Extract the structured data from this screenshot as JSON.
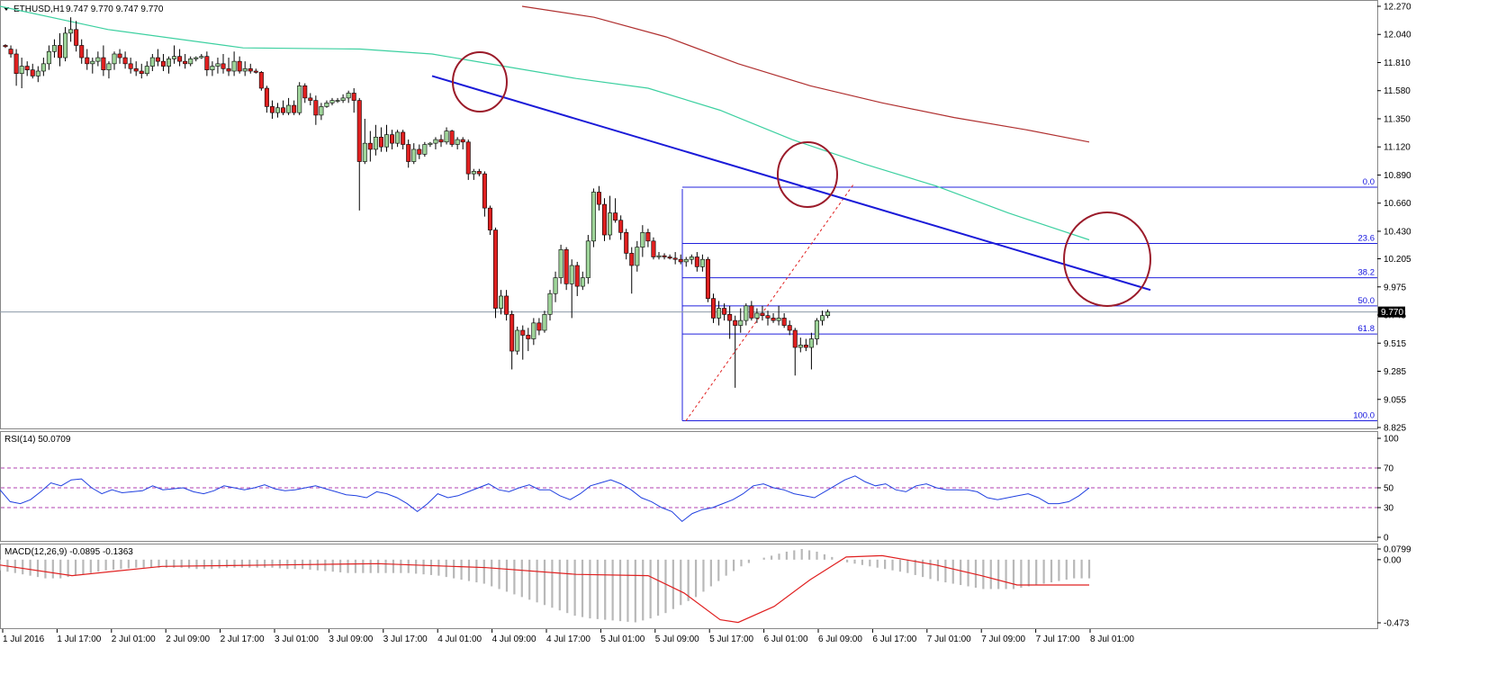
{
  "chart_data": {
    "type": "candlestick",
    "symbol": "ETHUSD,H1",
    "header_values": "9.747 9.770 9.747 9.770",
    "current_price": "9.770",
    "price_axis": {
      "min": 8.825,
      "max": 12.27,
      "ticks": [
        "12.270",
        "12.040",
        "11.810",
        "11.580",
        "11.350",
        "11.120",
        "10.890",
        "10.660",
        "10.430",
        "10.205",
        "9.975",
        "9.745",
        "9.515",
        "9.285",
        "9.055",
        "8.825"
      ]
    },
    "time_axis": {
      "ticks": [
        "1 Jul 2016",
        "1 Jul 17:00",
        "2 Jul 01:00",
        "2 Jul 09:00",
        "2 Jul 17:00",
        "3 Jul 01:00",
        "3 Jul 09:00",
        "3 Jul 17:00",
        "4 Jul 01:00",
        "4 Jul 09:00",
        "4 Jul 17:00",
        "5 Jul 01:00",
        "5 Jul 09:00",
        "5 Jul 17:00",
        "6 Jul 01:00",
        "6 Jul 09:00",
        "6 Jul 17:00",
        "7 Jul 01:00",
        "7 Jul 09:00",
        "7 Jul 17:00",
        "8 Jul 01:00"
      ]
    },
    "candles_ohlc": [
      [
        11.95,
        11.96,
        11.93,
        11.94
      ],
      [
        11.92,
        11.95,
        11.85,
        11.88
      ],
      [
        11.88,
        11.92,
        11.62,
        11.72
      ],
      [
        11.72,
        11.85,
        11.6,
        11.78
      ],
      [
        11.78,
        11.82,
        11.7,
        11.75
      ],
      [
        11.75,
        11.8,
        11.68,
        11.7
      ],
      [
        11.7,
        11.78,
        11.65,
        11.74
      ],
      [
        11.74,
        11.85,
        11.7,
        11.8
      ],
      [
        11.8,
        11.95,
        11.75,
        11.9
      ],
      [
        11.9,
        12.0,
        11.85,
        11.95
      ],
      [
        11.95,
        12.05,
        11.78,
        11.85
      ],
      [
        11.85,
        12.1,
        11.82,
        12.05
      ],
      [
        12.05,
        12.18,
        11.98,
        12.08
      ],
      [
        12.08,
        12.15,
        11.9,
        11.95
      ],
      [
        11.95,
        12.0,
        11.8,
        11.85
      ],
      [
        11.85,
        11.92,
        11.75,
        11.8
      ],
      [
        11.8,
        11.85,
        11.72,
        11.82
      ],
      [
        11.82,
        11.9,
        11.78,
        11.85
      ],
      [
        11.85,
        11.95,
        11.7,
        11.75
      ],
      [
        11.75,
        11.82,
        11.68,
        11.8
      ],
      [
        11.8,
        11.9,
        11.75,
        11.88
      ],
      [
        11.88,
        11.92,
        11.8,
        11.85
      ],
      [
        11.85,
        11.9,
        11.76,
        11.8
      ],
      [
        11.8,
        11.85,
        11.72,
        11.76
      ],
      [
        11.76,
        11.82,
        11.7,
        11.74
      ],
      [
        11.74,
        11.8,
        11.68,
        11.72
      ],
      [
        11.72,
        11.82,
        11.7,
        11.78
      ],
      [
        11.78,
        11.88,
        11.74,
        11.85
      ],
      [
        11.85,
        11.92,
        11.78,
        11.82
      ],
      [
        11.82,
        11.88,
        11.74,
        11.78
      ],
      [
        11.78,
        11.86,
        11.72,
        11.84
      ],
      [
        11.84,
        11.95,
        11.8,
        11.86
      ],
      [
        11.86,
        11.92,
        11.78,
        11.82
      ],
      [
        11.82,
        11.88,
        11.76,
        11.8
      ],
      [
        11.8,
        11.86,
        11.78,
        11.84
      ],
      [
        11.84,
        11.86,
        11.82,
        11.85
      ],
      [
        11.85,
        11.88,
        11.84,
        11.86
      ],
      [
        11.86,
        11.9,
        11.7,
        11.75
      ],
      [
        11.75,
        11.82,
        11.7,
        11.78
      ],
      [
        11.78,
        11.85,
        11.72,
        11.8
      ],
      [
        11.8,
        11.88,
        11.72,
        11.76
      ],
      [
        11.76,
        11.85,
        11.7,
        11.74
      ],
      [
        11.74,
        11.9,
        11.7,
        11.82
      ],
      [
        11.82,
        11.86,
        11.72,
        11.74
      ],
      [
        11.74,
        11.82,
        11.7,
        11.76
      ],
      [
        11.76,
        11.8,
        11.72,
        11.74
      ],
      [
        11.74,
        11.76,
        11.72,
        11.73
      ],
      [
        11.73,
        11.74,
        11.58,
        11.6
      ],
      [
        11.6,
        11.62,
        11.4,
        11.45
      ],
      [
        11.45,
        11.5,
        11.35,
        11.4
      ],
      [
        11.4,
        11.48,
        11.36,
        11.44
      ],
      [
        11.44,
        11.5,
        11.38,
        11.4
      ],
      [
        11.4,
        11.52,
        11.38,
        11.46
      ],
      [
        11.46,
        11.5,
        11.38,
        11.4
      ],
      [
        11.4,
        11.65,
        11.38,
        11.62
      ],
      [
        11.62,
        11.64,
        11.48,
        11.52
      ],
      [
        11.52,
        11.56,
        11.46,
        11.5
      ],
      [
        11.5,
        11.54,
        11.3,
        11.38
      ],
      [
        11.38,
        11.48,
        11.34,
        11.45
      ],
      [
        11.45,
        11.5,
        11.44,
        11.48
      ],
      [
        11.48,
        11.52,
        11.46,
        11.5
      ],
      [
        11.5,
        11.52,
        11.48,
        11.5
      ],
      [
        11.5,
        11.55,
        11.48,
        11.52
      ],
      [
        11.52,
        11.58,
        11.48,
        11.56
      ],
      [
        11.56,
        11.6,
        11.4,
        11.5
      ],
      [
        11.5,
        11.52,
        10.6,
        11.0
      ],
      [
        11.0,
        11.35,
        10.98,
        11.15
      ],
      [
        11.15,
        11.25,
        11.0,
        11.1
      ],
      [
        11.1,
        11.3,
        11.05,
        11.2
      ],
      [
        11.2,
        11.28,
        11.08,
        11.12
      ],
      [
        11.12,
        11.3,
        11.08,
        11.22
      ],
      [
        11.22,
        11.26,
        11.1,
        11.15
      ],
      [
        11.15,
        11.26,
        11.12,
        11.24
      ],
      [
        11.24,
        11.26,
        11.1,
        11.14
      ],
      [
        11.14,
        11.18,
        10.95,
        11.0
      ],
      [
        11.0,
        11.15,
        10.98,
        11.1
      ],
      [
        11.1,
        11.14,
        11.02,
        11.06
      ],
      [
        11.06,
        11.16,
        11.04,
        11.14
      ],
      [
        11.14,
        11.16,
        11.12,
        11.15
      ],
      [
        11.15,
        11.2,
        11.1,
        11.18
      ],
      [
        11.18,
        11.22,
        11.12,
        11.16
      ],
      [
        11.16,
        11.28,
        11.14,
        11.25
      ],
      [
        11.25,
        11.26,
        11.12,
        11.14
      ],
      [
        11.14,
        11.2,
        11.1,
        11.18
      ],
      [
        11.18,
        11.2,
        11.1,
        11.16
      ],
      [
        11.16,
        11.18,
        10.85,
        10.9
      ],
      [
        10.9,
        10.94,
        10.85,
        10.92
      ],
      [
        10.92,
        10.94,
        10.88,
        10.9
      ],
      [
        10.9,
        10.92,
        10.55,
        10.62
      ],
      [
        10.62,
        10.64,
        10.4,
        10.44
      ],
      [
        10.44,
        10.46,
        9.72,
        9.8
      ],
      [
        9.8,
        9.95,
        9.75,
        9.9
      ],
      [
        9.9,
        9.95,
        9.7,
        9.75
      ],
      [
        9.75,
        9.78,
        9.3,
        9.45
      ],
      [
        9.45,
        9.65,
        9.42,
        9.62
      ],
      [
        9.62,
        9.66,
        9.38,
        9.58
      ],
      [
        9.58,
        9.64,
        9.45,
        9.55
      ],
      [
        9.55,
        9.72,
        9.5,
        9.68
      ],
      [
        9.68,
        9.72,
        9.58,
        9.62
      ],
      [
        9.62,
        9.78,
        9.6,
        9.75
      ],
      [
        9.75,
        9.95,
        9.7,
        9.92
      ],
      [
        9.92,
        10.1,
        9.85,
        10.05
      ],
      [
        10.05,
        10.32,
        10.0,
        10.28
      ],
      [
        10.28,
        10.3,
        9.95,
        10.0
      ],
      [
        10.0,
        10.2,
        9.72,
        10.15
      ],
      [
        10.15,
        10.18,
        9.9,
        9.98
      ],
      [
        9.98,
        10.1,
        9.95,
        10.05
      ],
      [
        10.05,
        10.4,
        10.0,
        10.35
      ],
      [
        10.35,
        10.78,
        10.3,
        10.75
      ],
      [
        10.75,
        10.8,
        10.6,
        10.65
      ],
      [
        10.65,
        10.7,
        10.35,
        10.4
      ],
      [
        10.4,
        10.72,
        10.36,
        10.58
      ],
      [
        10.58,
        10.7,
        10.5,
        10.52
      ],
      [
        10.52,
        10.56,
        10.36,
        10.42
      ],
      [
        10.42,
        10.45,
        10.2,
        10.25
      ],
      [
        10.25,
        10.3,
        9.92,
        10.15
      ],
      [
        10.15,
        10.35,
        10.1,
        10.3
      ],
      [
        10.3,
        10.48,
        10.22,
        10.42
      ],
      [
        10.42,
        10.45,
        10.3,
        10.35
      ],
      [
        10.35,
        10.38,
        10.2,
        10.22
      ],
      [
        10.22,
        10.26,
        10.2,
        10.23
      ],
      [
        10.23,
        10.25,
        10.2,
        10.22
      ],
      [
        10.22,
        10.24,
        10.2,
        10.21
      ],
      [
        10.21,
        10.26,
        10.16,
        10.2
      ],
      [
        10.2,
        10.24,
        10.16,
        10.18
      ],
      [
        10.18,
        10.22,
        10.14,
        10.2
      ],
      [
        10.2,
        10.24,
        10.16,
        10.22
      ],
      [
        10.22,
        10.26,
        10.1,
        10.14
      ],
      [
        10.14,
        10.24,
        10.1,
        10.2
      ],
      [
        10.2,
        10.22,
        9.85,
        9.88
      ],
      [
        9.88,
        9.92,
        9.68,
        9.72
      ],
      [
        9.72,
        9.86,
        9.66,
        9.8
      ],
      [
        9.8,
        9.84,
        9.7,
        9.75
      ],
      [
        9.75,
        9.82,
        9.55,
        9.7
      ],
      [
        9.7,
        9.74,
        9.15,
        9.66
      ],
      [
        9.66,
        9.8,
        9.6,
        9.7
      ],
      [
        9.7,
        9.84,
        9.66,
        9.82
      ],
      [
        9.82,
        9.86,
        9.7,
        9.72
      ],
      [
        9.72,
        9.8,
        9.68,
        9.76
      ],
      [
        9.76,
        9.82,
        9.7,
        9.74
      ],
      [
        9.74,
        9.78,
        9.66,
        9.72
      ],
      [
        9.72,
        9.76,
        9.68,
        9.7
      ],
      [
        9.7,
        9.82,
        9.66,
        9.72
      ],
      [
        9.72,
        9.76,
        9.64,
        9.66
      ],
      [
        9.66,
        9.7,
        9.58,
        9.62
      ],
      [
        9.62,
        9.64,
        9.25,
        9.48
      ],
      [
        9.48,
        9.56,
        9.44,
        9.5
      ],
      [
        9.5,
        9.55,
        9.45,
        9.48
      ],
      [
        9.48,
        9.6,
        9.3,
        9.55
      ],
      [
        9.55,
        9.72,
        9.5,
        9.7
      ],
      [
        9.7,
        9.78,
        9.66,
        9.74
      ],
      [
        9.74,
        9.79,
        9.72,
        9.77
      ]
    ],
    "ma_green": [
      [
        0,
        12.27
      ],
      [
        120,
        12.08
      ],
      [
        270,
        11.93
      ],
      [
        400,
        11.92
      ],
      [
        480,
        11.88
      ],
      [
        560,
        11.78
      ],
      [
        640,
        11.68
      ],
      [
        720,
        11.6
      ],
      [
        800,
        11.42
      ],
      [
        880,
        11.18
      ],
      [
        960,
        10.98
      ],
      [
        1040,
        10.8
      ],
      [
        1120,
        10.58
      ],
      [
        1210,
        10.36
      ]
    ],
    "ma_red": [
      [
        580,
        12.27
      ],
      [
        660,
        12.18
      ],
      [
        740,
        12.02
      ],
      [
        820,
        11.8
      ],
      [
        900,
        11.62
      ],
      [
        980,
        11.48
      ],
      [
        1060,
        11.36
      ],
      [
        1140,
        11.26
      ],
      [
        1210,
        11.16
      ]
    ],
    "trend_line": [
      [
        480,
        11.7
      ],
      [
        1278,
        9.95
      ]
    ],
    "fib_levels": [
      {
        "label": "0.0",
        "price": 10.79
      },
      {
        "label": "23.6",
        "price": 10.33
      },
      {
        "label": "38.2",
        "price": 10.05
      },
      {
        "label": "50.0",
        "price": 9.82
      },
      {
        "label": "61.8",
        "price": 9.59
      },
      {
        "label": "100.0",
        "price": 8.88
      }
    ],
    "fib_anchor_low": 8.88,
    "fib_anchor_high": 10.79,
    "circles": [
      [
        533,
        91,
        30,
        33
      ],
      [
        897,
        194,
        33,
        36
      ],
      [
        1230,
        288,
        48,
        52
      ]
    ],
    "rsi": {
      "label": "RSI(14) 50.0709",
      "levels": [
        "100",
        "70",
        "50",
        "30",
        "0"
      ],
      "values": [
        48,
        36,
        34,
        38,
        46,
        55,
        52,
        58,
        59,
        50,
        44,
        48,
        45,
        46,
        47,
        52,
        48,
        49,
        50,
        46,
        44,
        47,
        52,
        50,
        48,
        50,
        53,
        49,
        47,
        48,
        50,
        52,
        49,
        46,
        43,
        42,
        40,
        46,
        44,
        40,
        34,
        26,
        34,
        44,
        40,
        42,
        46,
        50,
        54,
        48,
        46,
        50,
        53,
        48,
        48,
        42,
        38,
        44,
        52,
        55,
        58,
        54,
        48,
        40,
        36,
        30,
        26,
        16,
        24,
        28,
        30,
        34,
        38,
        44,
        52,
        54,
        50,
        48,
        44,
        42,
        40,
        46,
        52,
        58,
        62,
        56,
        52,
        54,
        48,
        46,
        52,
        54,
        50,
        48,
        48,
        48,
        46,
        40,
        38,
        40,
        42,
        44,
        40,
        34,
        34,
        36,
        42,
        50
      ]
    },
    "macd": {
      "label": "MACD(12,26,9) -0.0895 -0.1363",
      "ticks": [
        "0.0799",
        "0.00",
        "-0.473"
      ],
      "hist": [
        -0.08,
        -0.1,
        -0.12,
        -0.14,
        -0.14,
        -0.12,
        -0.1,
        -0.08,
        -0.07,
        -0.06,
        -0.06,
        -0.06,
        -0.06,
        -0.07,
        -0.07,
        -0.06,
        -0.06,
        -0.06,
        -0.06,
        -0.07,
        -0.07,
        -0.08,
        -0.09,
        -0.1,
        -0.1,
        -0.1,
        -0.1,
        -0.1,
        -0.11,
        -0.12,
        -0.14,
        -0.16,
        -0.18,
        -0.22,
        -0.26,
        -0.3,
        -0.34,
        -0.38,
        -0.42,
        -0.44,
        -0.45,
        -0.46,
        -0.47,
        -0.44,
        -0.4,
        -0.34,
        -0.28,
        -0.2,
        -0.12,
        -0.05,
        0,
        0.03,
        0.06,
        0.08,
        0.06,
        0.02,
        -0.02,
        -0.04,
        -0.06,
        -0.08,
        -0.1,
        -0.13,
        -0.16,
        -0.18,
        -0.2,
        -0.22,
        -0.22,
        -0.22,
        -0.2,
        -0.18,
        -0.16,
        -0.14,
        -0.14
      ],
      "signal": [
        [
          0,
          -0.04
        ],
        [
          80,
          -0.12
        ],
        [
          180,
          -0.05
        ],
        [
          300,
          -0.04
        ],
        [
          420,
          -0.03
        ],
        [
          540,
          -0.06
        ],
        [
          640,
          -0.11
        ],
        [
          720,
          -0.12
        ],
        [
          760,
          -0.25
        ],
        [
          800,
          -0.45
        ],
        [
          820,
          -0.47
        ],
        [
          860,
          -0.35
        ],
        [
          900,
          -0.15
        ],
        [
          940,
          0.02
        ],
        [
          980,
          0.03
        ],
        [
          1040,
          -0.04
        ],
        [
          1090,
          -0.12
        ],
        [
          1130,
          -0.19
        ],
        [
          1210,
          -0.19
        ]
      ]
    }
  }
}
